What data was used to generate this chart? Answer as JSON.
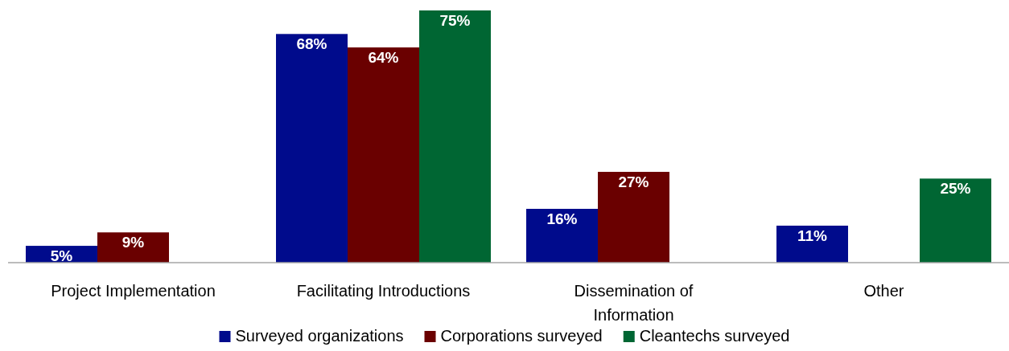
{
  "chart_data": {
    "type": "bar",
    "categories": [
      "Project Implementation",
      "Facilitating Introductions",
      "Dissemination of Information",
      "Other"
    ],
    "series": [
      {
        "name": "Surveyed organizations",
        "color": "#000b8c",
        "values": [
          5,
          68,
          16,
          11
        ],
        "value_labels": [
          "5%",
          "68%",
          "16%",
          "11%"
        ]
      },
      {
        "name": "Corporations surveyed",
        "color": "#6a0000",
        "values": [
          9,
          64,
          27,
          null
        ],
        "value_labels": [
          "9%",
          "64%",
          "27%",
          null
        ]
      },
      {
        "name": "Cleantechs surveyed",
        "color": "#006633",
        "values": [
          null,
          75,
          null,
          25
        ],
        "value_labels": [
          null,
          "75%",
          null,
          "25%"
        ]
      }
    ],
    "legend": "bottom"
  }
}
